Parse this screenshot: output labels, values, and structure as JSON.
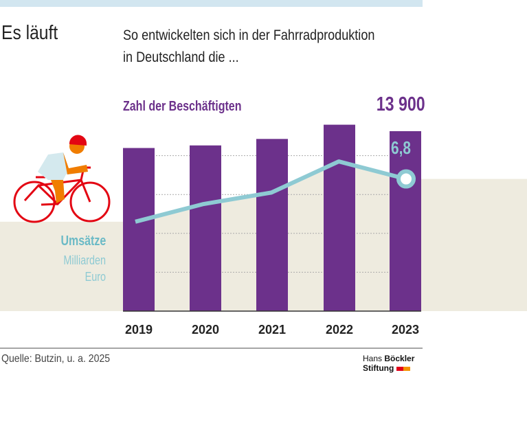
{
  "title": "Es läuft",
  "subtitle_line1": "So entwickelten sich in der Fahrradproduktion",
  "subtitle_line2": "in Deutschland die ...",
  "source": "Quelle: Butzin, u. a. 2025",
  "logo": {
    "line1_a": "Hans ",
    "line1_b": "Böckler",
    "line2": "Stiftung"
  },
  "colors": {
    "bars": "#6c318b",
    "line": "#8ecad3",
    "area": "#eeebdf",
    "topbar": "#d2e6f0"
  },
  "chart_data": {
    "type": "bar+line",
    "categories": [
      "2019",
      "2020",
      "2021",
      "2022",
      "2023"
    ],
    "series": [
      {
        "name": "Zahl der Beschäftigten",
        "type": "bar",
        "values": [
          12600,
          12800,
          13300,
          14400,
          13900
        ],
        "label_last": "13 900"
      },
      {
        "name": "Umsätze",
        "unit_line1": "Milliarden",
        "unit_line2": "Euro",
        "type": "line",
        "values": [
          4.6,
          5.5,
          6.1,
          7.7,
          6.8
        ],
        "label_last": "6,8"
      }
    ],
    "grid": true
  }
}
